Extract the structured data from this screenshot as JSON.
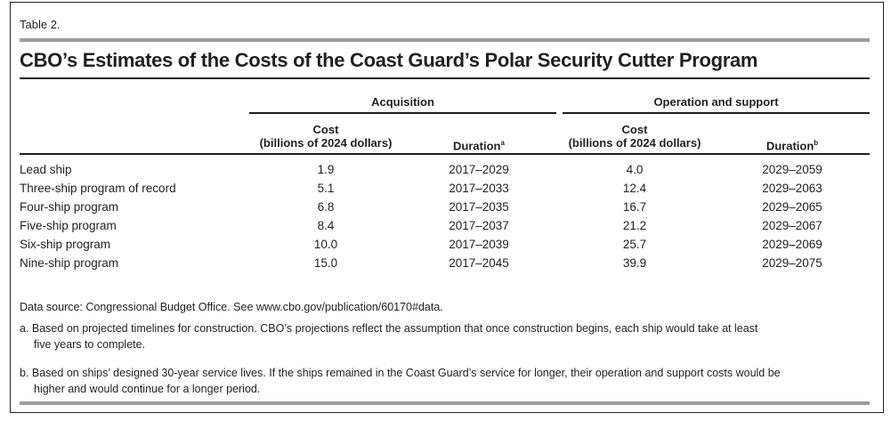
{
  "table_label": "Table 2.",
  "title": "CBO’s Estimates of the Costs of the Coast Guard’s Polar Security Cutter Program",
  "groups": {
    "acquisition": "Acquisition",
    "operation": "Operation and support"
  },
  "headers": {
    "acq_cost": "Cost",
    "acq_cost_unit": "(billions of 2024 dollars)",
    "acq_duration": "Duration",
    "acq_duration_note": "a",
    "os_cost": "Cost",
    "os_cost_unit": "(billions of 2024 dollars)",
    "os_duration": "Duration",
    "os_duration_note": "b"
  },
  "rows": [
    {
      "program": "Lead ship",
      "acq_cost": "1.9",
      "acq_duration": "2017–2029",
      "os_cost": "4.0",
      "os_duration": "2029–2059"
    },
    {
      "program": "Three-ship program of record",
      "acq_cost": "5.1",
      "acq_duration": "2017–2033",
      "os_cost": "12.4",
      "os_duration": "2029–2063"
    },
    {
      "program": "Four-ship program",
      "acq_cost": "6.8",
      "acq_duration": "2017–2035",
      "os_cost": "16.7",
      "os_duration": "2029–2065"
    },
    {
      "program": "Five-ship program",
      "acq_cost": "8.4",
      "acq_duration": "2017–2037",
      "os_cost": "21.2",
      "os_duration": "2029–2067"
    },
    {
      "program": "Six-ship program",
      "acq_cost": "10.0",
      "acq_duration": "2017–2039",
      "os_cost": "25.7",
      "os_duration": "2029–2069"
    },
    {
      "program": "Nine-ship program",
      "acq_cost": "15.0",
      "acq_duration": "2017–2045",
      "os_cost": "39.9",
      "os_duration": "2029–2075"
    }
  ],
  "source": "Data source: Congressional Budget Office. See www.cbo.gov/publication/60170#data.",
  "notes": {
    "a_line1": "a.  Based on projected timelines for construction. CBO’s projections reflect the assumption that once construction begins, each ship would take at least",
    "a_line2": "five years to complete.",
    "b_line1": "b.  Based on ships’ designed 30-year service lives. If the ships remained in the Coast Guard’s service for longer, their operation and support costs would be",
    "b_line2": "higher and would continue for a longer period."
  }
}
